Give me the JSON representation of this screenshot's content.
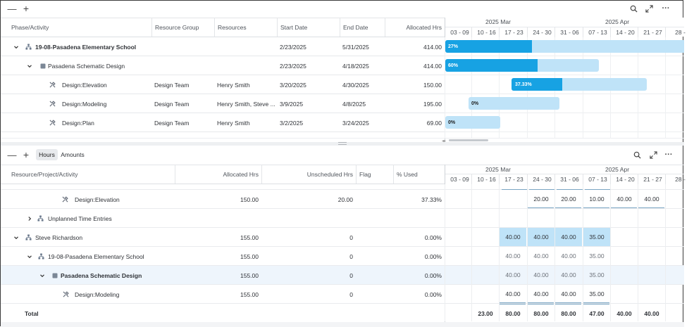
{
  "toolbar_top": {
    "collapse": "—",
    "expand": "+"
  },
  "top_grid": {
    "columns": [
      "Phase/Activity",
      "Resource Group",
      "Resources",
      "Start Date",
      "End Date",
      "Allocated Hrs"
    ],
    "rows": [
      {
        "name": "19-08-Pasadena Elementary School",
        "group": "",
        "resources": "",
        "start": "2/23/2025",
        "end": "5/31/2025",
        "hrs": "414.00",
        "pct": "27%"
      },
      {
        "name": "Pasadena Schematic Design",
        "group": "",
        "resources": "",
        "start": "2/23/2025",
        "end": "4/18/2025",
        "hrs": "414.00",
        "pct": "60%"
      },
      {
        "name": "Design:Elevation",
        "group": "Design Team",
        "resources": "Henry Smith",
        "start": "3/20/2025",
        "end": "4/30/2025",
        "hrs": "150.00",
        "pct": "37.33%"
      },
      {
        "name": "Design:Modeling",
        "group": "Design Team",
        "resources": "Henry Smith, Steve ...",
        "start": "3/9/2025",
        "end": "4/8/2025",
        "hrs": "195.00",
        "pct": "0%"
      },
      {
        "name": "Design:Plan",
        "group": "Design Team",
        "resources": "Henry Smith",
        "start": "3/2/2025",
        "end": "3/24/2025",
        "hrs": "69.00",
        "pct": "0%"
      }
    ],
    "gantt_progress": [
      0.27,
      0.6,
      0.3733,
      0.0,
      0.0
    ]
  },
  "timeline": {
    "months": [
      "2025 Mar",
      "2025 Apr"
    ],
    "weeks": [
      "03 - 09",
      "10 - 16",
      "17 - 23",
      "24 - 30",
      "31 - 06",
      "07 - 13",
      "14 - 20",
      "21 - 27",
      "28 -"
    ]
  },
  "bottom_toolbar": {
    "tab_hours": "Hours",
    "tab_amounts": "Amounts"
  },
  "bottom_grid": {
    "columns": [
      "Resource/Project/Activity",
      "Allocated Hrs",
      "Unscheduled Hrs",
      "Flag",
      "% Used"
    ],
    "rows": [
      {
        "name": "Design:Elevation",
        "alloc": "150.00",
        "unsched": "20.00",
        "flag": "",
        "used": "37.33%",
        "weeks": [
          "",
          "",
          "",
          "20.00",
          "20.00",
          "10.00",
          "40.00",
          "40.00",
          ""
        ]
      },
      {
        "name": "Unplanned Time Entries",
        "alloc": "",
        "unsched": "",
        "flag": "",
        "used": "",
        "weeks": [
          "",
          "",
          "",
          "",
          "",
          "",
          "",
          "",
          ""
        ]
      },
      {
        "name": "Steve Richardson",
        "alloc": "155.00",
        "unsched": "0",
        "flag": "",
        "used": "0.00%",
        "weeks": [
          "",
          "",
          "40.00",
          "40.00",
          "40.00",
          "35.00",
          "",
          "",
          ""
        ]
      },
      {
        "name": "19-08-Pasadena Elementary School",
        "alloc": "155.00",
        "unsched": "0",
        "flag": "",
        "used": "0.00%",
        "weeks": [
          "",
          "",
          "40.00",
          "40.00",
          "40.00",
          "35.00",
          "",
          "",
          ""
        ]
      },
      {
        "name": "Pasadena Schematic Design",
        "alloc": "155.00",
        "unsched": "0",
        "flag": "",
        "used": "0.00%",
        "weeks": [
          "",
          "",
          "40.00",
          "40.00",
          "40.00",
          "35.00",
          "",
          "",
          ""
        ]
      },
      {
        "name": "Design:Modeling",
        "alloc": "155.00",
        "unsched": "0",
        "flag": "",
        "used": "0.00%",
        "weeks": [
          "",
          "",
          "40.00",
          "40.00",
          "40.00",
          "35.00",
          "",
          "",
          ""
        ]
      }
    ],
    "total": {
      "label": "Total",
      "weeks": [
        "",
        "23.00",
        "80.00",
        "80.00",
        "80.00",
        "47.00",
        "40.00",
        "40.00",
        ""
      ]
    }
  },
  "colors": {
    "bar_fill": "#17a2e3",
    "bar_track": "#bfe3f8",
    "row_highlight": "#eef5fc"
  }
}
